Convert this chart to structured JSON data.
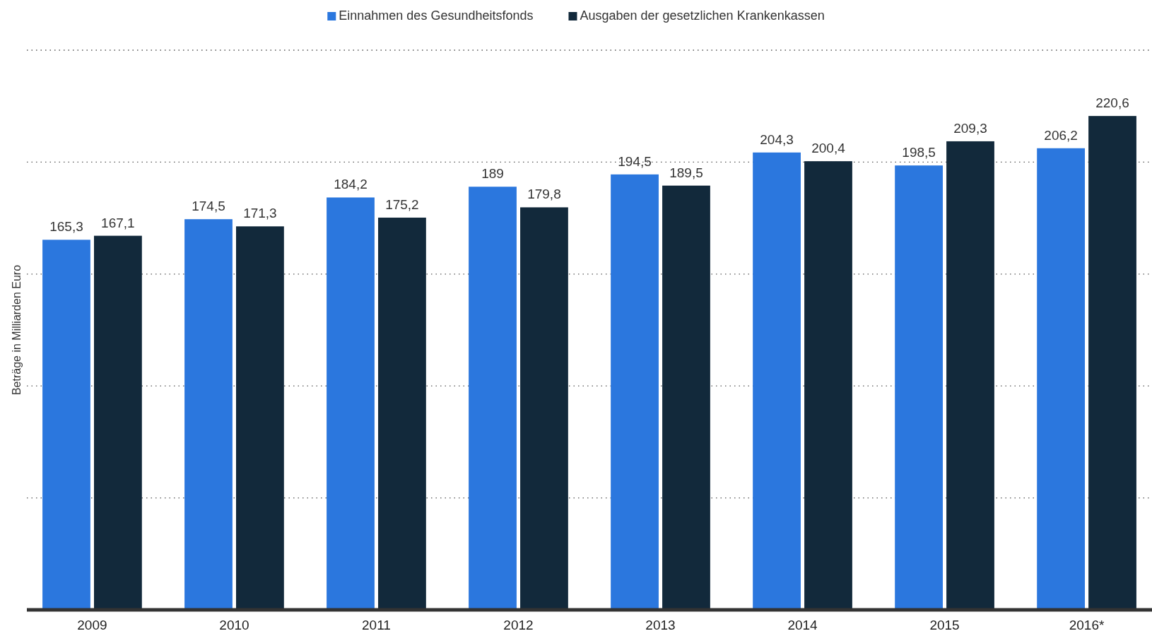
{
  "chart_data": {
    "type": "bar",
    "ylabel": "Beträge in Milliarden Euro",
    "categories": [
      "2009",
      "2010",
      "2011",
      "2012",
      "2013",
      "2014",
      "2015",
      "2016*"
    ],
    "series": [
      {
        "name": "Einnahmen des Gesundheitsfonds",
        "color": "#2b77de",
        "values": [
          165.3,
          174.5,
          184.2,
          189,
          194.5,
          204.3,
          198.5,
          206.2
        ],
        "value_labels": [
          "165,3",
          "174,5",
          "184,2",
          "189",
          "194,5",
          "204,3",
          "198,5",
          "206,2"
        ]
      },
      {
        "name": "Ausgaben der gesetzlichen Krankenkassen",
        "color": "#12293b",
        "values": [
          167.1,
          171.3,
          175.2,
          179.8,
          189.5,
          200.4,
          209.3,
          220.6
        ],
        "value_labels": [
          "167,1",
          "171,3",
          "175,2",
          "179,8",
          "189,5",
          "200,4",
          "209,3",
          "220,6"
        ]
      }
    ],
    "ylim": [
      0,
      250
    ],
    "yticks": [
      {
        "value": 0,
        "label": null
      },
      {
        "value": 50,
        "label": null
      },
      {
        "value": 100,
        "label": null
      },
      {
        "value": 150,
        "label": null
      },
      {
        "value": 200,
        "label": null
      },
      {
        "value": 250,
        "label": null
      }
    ],
    "grid": "y",
    "legend": "top",
    "tick_labels": "x"
  }
}
